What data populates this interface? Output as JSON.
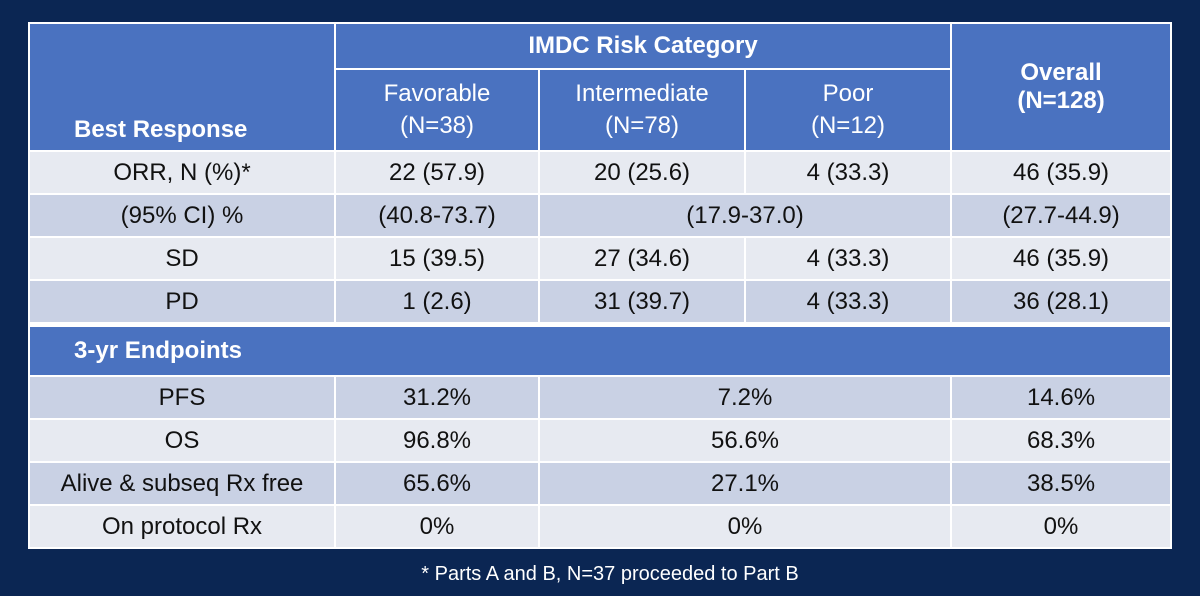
{
  "header": {
    "best_response": "Best Response",
    "imdc": "IMDC Risk Category",
    "favorable": {
      "name": "Favorable",
      "n": "(N=38)"
    },
    "intermediate": {
      "name": "Intermediate",
      "n": "(N=78)"
    },
    "poor": {
      "name": "Poor",
      "n": "(N=12)"
    },
    "overall": {
      "name": "Overall",
      "n": "(N=128)"
    }
  },
  "response_rows": [
    {
      "label": "ORR, N (%)*",
      "favorable": "22 (57.9)",
      "intermediate": "20 (25.6)",
      "poor": "4 (33.3)",
      "overall": "46 (35.9)"
    },
    {
      "label": "(95% CI) %",
      "favorable": "(40.8-73.7)",
      "int_poor": "(17.9-37.0)",
      "overall": "(27.7-44.9)"
    },
    {
      "label": "SD",
      "favorable": "15 (39.5)",
      "intermediate": "27 (34.6)",
      "poor": "4 (33.3)",
      "overall": "46 (35.9)"
    },
    {
      "label": "PD",
      "favorable": "1 (2.6)",
      "intermediate": "31 (39.7)",
      "poor": "4 (33.3)",
      "overall": "36 (28.1)"
    }
  ],
  "endpoints": {
    "title": "3-yr Endpoints",
    "rows": [
      {
        "label": "PFS",
        "favorable": "31.2%",
        "int_poor": "7.2%",
        "overall": "14.6%"
      },
      {
        "label": "OS",
        "favorable": "96.8%",
        "int_poor": "56.6%",
        "overall": "68.3%"
      },
      {
        "label": "Alive & subseq Rx free",
        "favorable": "65.6%",
        "int_poor": "27.1%",
        "overall": "38.5%"
      },
      {
        "label": "On protocol Rx",
        "favorable": "0%",
        "int_poor": "0%",
        "overall": "0%"
      }
    ]
  },
  "footnote": "* Parts A and B, N=37 proceeded to Part B"
}
